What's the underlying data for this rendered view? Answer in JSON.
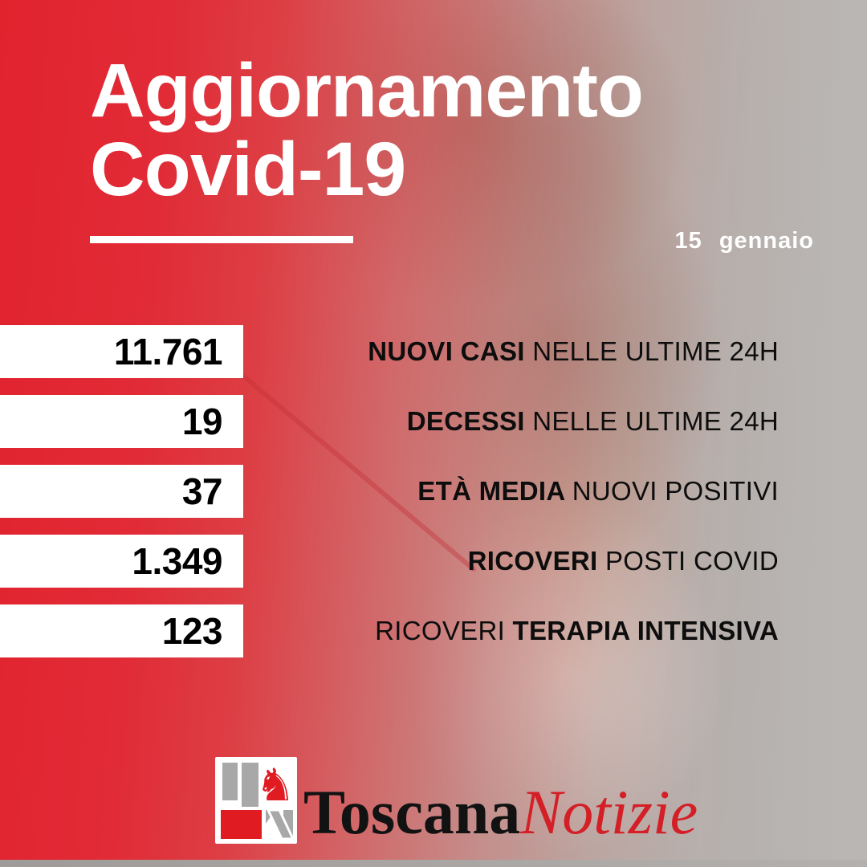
{
  "header": {
    "title_line1": "Aggiornamento",
    "title_line2": "Covid-19",
    "date": "15 gennaio"
  },
  "stats": [
    {
      "value": "11.761",
      "segments": [
        {
          "text": "NUOVI CASI ",
          "bold": true
        },
        {
          "text": "NELLE ULTIME 24H",
          "bold": false
        }
      ]
    },
    {
      "value": "19",
      "segments": [
        {
          "text": "DECESSI ",
          "bold": true
        },
        {
          "text": "NELLE ULTIME 24H",
          "bold": false
        }
      ]
    },
    {
      "value": "37",
      "segments": [
        {
          "text": "ETÀ MEDIA ",
          "bold": true
        },
        {
          "text": "NUOVI POSITIVI",
          "bold": false
        }
      ]
    },
    {
      "value": "1.349",
      "segments": [
        {
          "text": "RICOVERI ",
          "bold": true
        },
        {
          "text": "POSTI COVID",
          "bold": false
        }
      ]
    },
    {
      "value": "123",
      "segments": [
        {
          "text": "RICOVERI ",
          "bold": false
        },
        {
          "text": "TERAPIA INTENSIVA",
          "bold": true
        }
      ]
    }
  ],
  "footer": {
    "brand_black": "Toscana",
    "brand_red": "Notizie",
    "pegasus_icon": "♞"
  },
  "colors": {
    "accent_red": "#e1232e",
    "background_gray": "#b5b2b0",
    "brand_red": "#d41f26",
    "logo_gray": "#a8a8a8",
    "bar_white": "#ffffff",
    "text_black": "#0d0d0d"
  }
}
